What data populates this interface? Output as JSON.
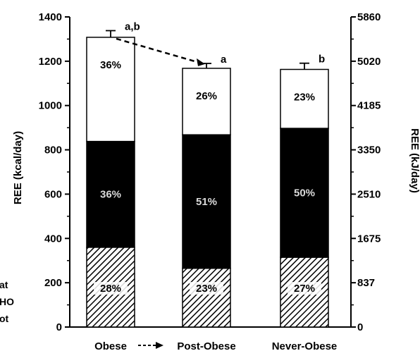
{
  "chart_data": {
    "type": "bar",
    "stacked": true,
    "categories": [
      "Obese",
      "Post-Obese",
      "Never-Obese"
    ],
    "category_connector": "---->",
    "ylabel": "REE (kcal/day)",
    "ylabel_right": "REE (kJ/day)",
    "ylim": [
      0,
      1400
    ],
    "yticks": [
      0,
      200,
      400,
      600,
      800,
      1000,
      1200,
      1400
    ],
    "yticks_right": [
      {
        "label": "0",
        "value": 0
      },
      {
        "label": "837",
        "value": 200
      },
      {
        "label": "1675",
        "value": 400
      },
      {
        "label": "2510",
        "value": 600
      },
      {
        "label": "3350",
        "value": 800
      },
      {
        "label": "4185",
        "value": 1000
      },
      {
        "label": "5020",
        "value": 1200
      },
      {
        "label": "5860",
        "value": 1400
      }
    ],
    "series": [
      {
        "name": "Prot",
        "values": [
          360,
          265,
          315
        ],
        "labels": [
          "28%",
          "23%",
          "27%"
        ],
        "fill": "hatch"
      },
      {
        "name": "CHO",
        "values": [
          478,
          603,
          582
        ],
        "labels": [
          "36%",
          "51%",
          "50%"
        ],
        "fill": "#000000"
      },
      {
        "name": "Fat",
        "values": [
          470,
          300,
          266
        ],
        "labels": [
          "36%",
          "26%",
          "23%"
        ],
        "fill": "#ffffff"
      }
    ],
    "totals": [
      1308,
      1168,
      1163
    ],
    "error_bars": [
      30,
      22,
      28
    ],
    "significance": [
      "a,b",
      "a",
      "b"
    ],
    "arrow": {
      "from": "Obese",
      "to": "Post-Obese"
    },
    "legend": {
      "placement": "left",
      "entries": [
        "Fat",
        "CHO",
        "Prot"
      ],
      "shown_text": [
        "at",
        "HO",
        "ot"
      ]
    },
    "grid": false
  }
}
